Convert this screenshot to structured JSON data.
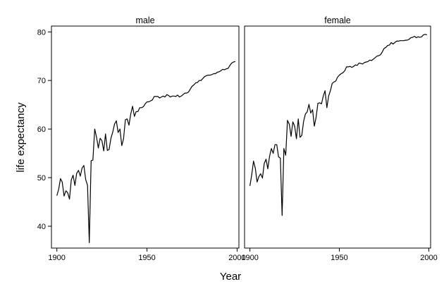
{
  "chart_data": {
    "type": "line",
    "xlabel": "Year",
    "ylabel": "life expectancy",
    "xlim": [
      1897,
      2001
    ],
    "ylim": [
      35.5,
      81.2
    ],
    "xticks": [
      1900,
      1950,
      2000
    ],
    "yticks": [
      40,
      50,
      60,
      70,
      80
    ],
    "grid": false,
    "line_color": "#000000",
    "panels": [
      {
        "name": "male",
        "x": [
          1900,
          1901,
          1902,
          1903,
          1904,
          1905,
          1906,
          1907,
          1908,
          1909,
          1910,
          1911,
          1912,
          1913,
          1914,
          1915,
          1916,
          1917,
          1918,
          1919,
          1920,
          1921,
          1922,
          1923,
          1924,
          1925,
          1926,
          1927,
          1928,
          1929,
          1930,
          1931,
          1932,
          1933,
          1934,
          1935,
          1936,
          1937,
          1938,
          1939,
          1940,
          1941,
          1942,
          1943,
          1944,
          1945,
          1946,
          1947,
          1948,
          1949,
          1950,
          1951,
          1952,
          1953,
          1954,
          1955,
          1956,
          1957,
          1958,
          1959,
          1960,
          1961,
          1962,
          1963,
          1964,
          1965,
          1966,
          1967,
          1968,
          1969,
          1970,
          1971,
          1972,
          1973,
          1974,
          1975,
          1976,
          1977,
          1978,
          1979,
          1980,
          1981,
          1982,
          1983,
          1984,
          1985,
          1986,
          1987,
          1988,
          1989,
          1990,
          1991,
          1992,
          1993,
          1994,
          1995,
          1996,
          1997,
          1998,
          1999
        ],
        "y": [
          46.3,
          47.6,
          49.8,
          49.1,
          46.2,
          47.3,
          46.9,
          45.6,
          49.5,
          50.5,
          48.4,
          50.9,
          51.5,
          50.3,
          52.0,
          52.5,
          49.6,
          48.4,
          36.6,
          53.5,
          53.6,
          60.0,
          58.4,
          56.1,
          58.1,
          57.6,
          55.5,
          59.0,
          55.6,
          55.8,
          58.1,
          59.4,
          61.0,
          61.7,
          59.3,
          60.0,
          56.6,
          58.0,
          61.9,
          62.1,
          60.8,
          63.1,
          64.7,
          62.6,
          63.6,
          63.6,
          64.4,
          64.4,
          64.6,
          65.2,
          65.6,
          65.6,
          65.8,
          66.0,
          66.7,
          66.7,
          66.7,
          66.4,
          66.6,
          66.8,
          66.6,
          67.1,
          66.9,
          66.6,
          66.8,
          66.8,
          66.7,
          67.0,
          66.6,
          66.8,
          67.1,
          67.4,
          67.4,
          67.6,
          68.2,
          68.8,
          69.1,
          69.5,
          69.6,
          70.0,
          70.0,
          70.4,
          70.8,
          71.0,
          71.1,
          71.1,
          71.2,
          71.4,
          71.4,
          71.7,
          71.8,
          72.0,
          72.3,
          72.2,
          72.4,
          72.5,
          73.1,
          73.6,
          73.8,
          73.9
        ]
      },
      {
        "name": "female",
        "x": [
          1900,
          1901,
          1902,
          1903,
          1904,
          1905,
          1906,
          1907,
          1908,
          1909,
          1910,
          1911,
          1912,
          1913,
          1914,
          1915,
          1916,
          1917,
          1918,
          1919,
          1920,
          1921,
          1922,
          1923,
          1924,
          1925,
          1926,
          1927,
          1928,
          1929,
          1930,
          1931,
          1932,
          1933,
          1934,
          1935,
          1936,
          1937,
          1938,
          1939,
          1940,
          1941,
          1942,
          1943,
          1944,
          1945,
          1946,
          1947,
          1948,
          1949,
          1950,
          1951,
          1952,
          1953,
          1954,
          1955,
          1956,
          1957,
          1958,
          1959,
          1960,
          1961,
          1962,
          1963,
          1964,
          1965,
          1966,
          1967,
          1968,
          1969,
          1970,
          1971,
          1972,
          1973,
          1974,
          1975,
          1976,
          1977,
          1978,
          1979,
          1980,
          1981,
          1982,
          1983,
          1984,
          1985,
          1986,
          1987,
          1988,
          1989,
          1990,
          1991,
          1992,
          1993,
          1994,
          1995,
          1996,
          1997,
          1998,
          1999
        ],
        "y": [
          48.3,
          50.6,
          53.4,
          52.0,
          49.1,
          50.2,
          50.8,
          49.9,
          52.9,
          53.8,
          51.8,
          54.4,
          56.0,
          55.0,
          56.8,
          56.8,
          54.3,
          54.0,
          42.2,
          56.0,
          54.6,
          61.8,
          61.0,
          58.5,
          61.5,
          60.6,
          58.0,
          62.1,
          58.3,
          58.7,
          61.6,
          63.1,
          63.5,
          65.1,
          63.3,
          64.0,
          60.6,
          62.4,
          65.3,
          65.4,
          65.2,
          66.8,
          67.9,
          64.4,
          66.8,
          67.9,
          69.4,
          69.7,
          69.9,
          70.7,
          71.1,
          71.4,
          71.6,
          72.0,
          72.8,
          72.8,
          72.9,
          72.7,
          72.9,
          73.2,
          73.1,
          73.6,
          73.5,
          73.4,
          73.7,
          73.8,
          73.9,
          74.2,
          74.1,
          74.4,
          74.7,
          75.0,
          75.1,
          75.3,
          75.9,
          76.6,
          76.8,
          77.2,
          77.3,
          77.8,
          77.5,
          77.8,
          78.1,
          78.1,
          78.2,
          78.2,
          78.2,
          78.3,
          78.3,
          78.5,
          78.8,
          78.9,
          79.1,
          78.8,
          79.0,
          78.9,
          79.0,
          79.4,
          79.5,
          79.4
        ]
      }
    ]
  }
}
